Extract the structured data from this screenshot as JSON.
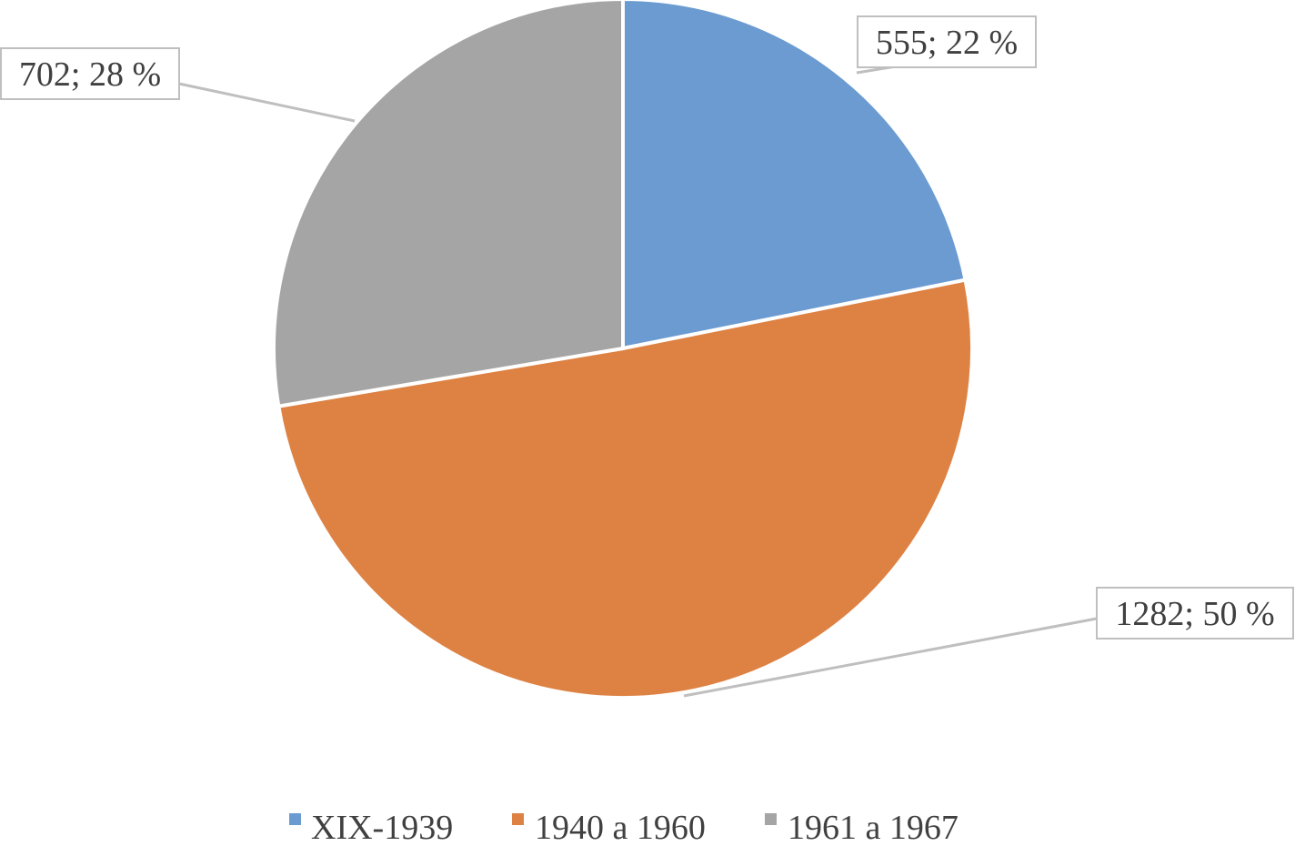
{
  "chart_data": {
    "type": "pie",
    "title": "",
    "categories": [
      "XIX-1939",
      "1940 a 1960",
      "1961 a 1967"
    ],
    "values": [
      555,
      1282,
      702
    ],
    "percentages": [
      22,
      50,
      28
    ],
    "data_labels": [
      "555; 22 %",
      "1282; 50 %",
      "702; 28 %"
    ],
    "colors": [
      "#6b9bd1",
      "#de8244",
      "#a5a5a5"
    ],
    "legend": {
      "position": "bottom",
      "entries": [
        "XIX-1939",
        "1940 a 1960",
        "1961 a 1967"
      ]
    },
    "start_angle": "12 o'clock",
    "direction": "clockwise"
  }
}
